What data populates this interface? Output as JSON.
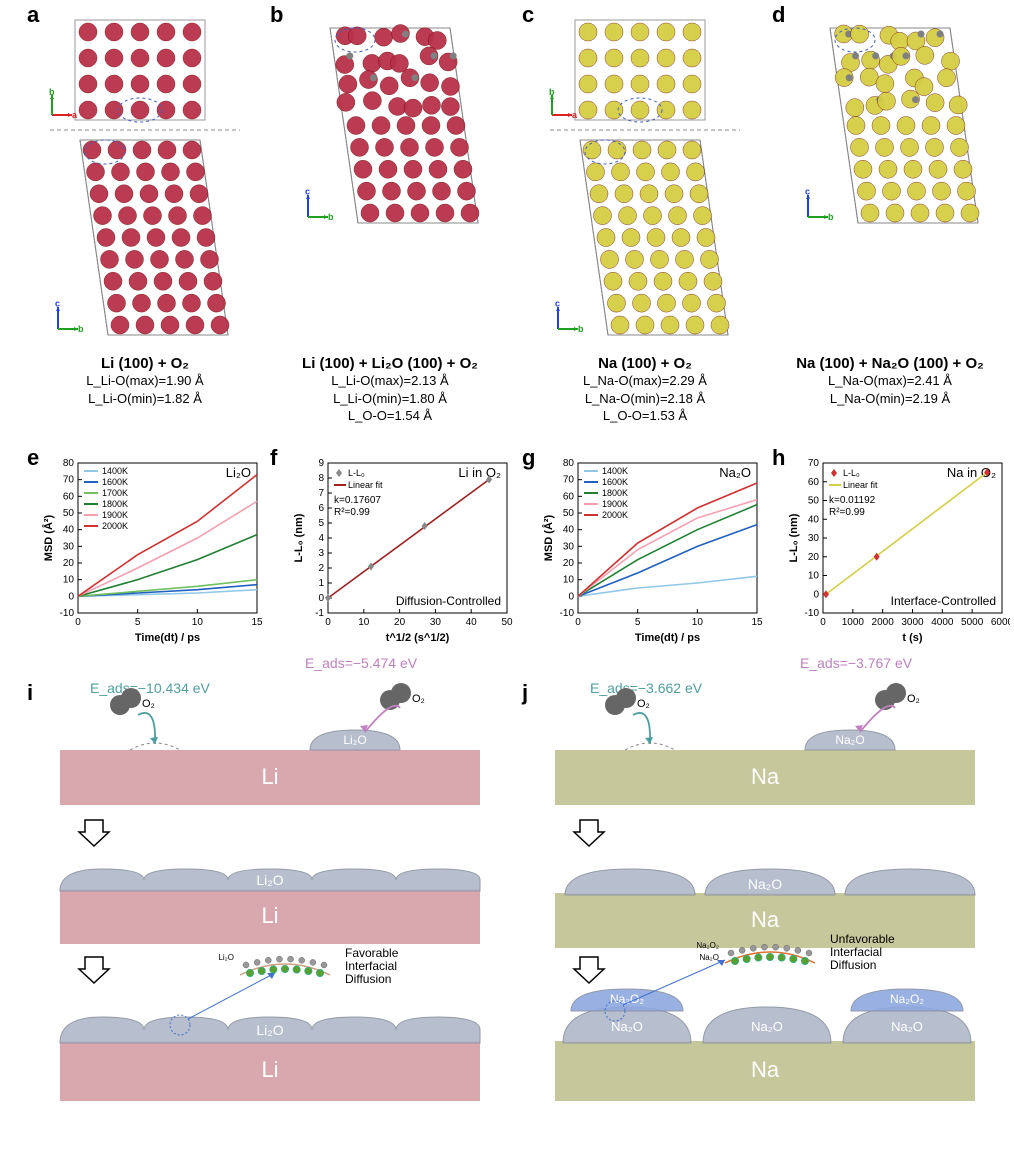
{
  "colors": {
    "li_atom": "#b8314a",
    "na_atom": "#d4ce44",
    "o_atom": "#808080",
    "slab_li": "#d9a8ae",
    "slab_na": "#c6c79a",
    "oxide": "#b0b8c8",
    "na2o2": "#8fa8e0",
    "axis_a": "#e02020",
    "axis_b": "#20a020",
    "axis_c": "#2040e0",
    "teal": "#4f9ea0",
    "pink": "#c080c0",
    "arc_li": "#d0a080",
    "arc_na": "#e07030",
    "diff_green": "#5aa02a"
  },
  "temps_palette": {
    "1400K": "#90c8e8",
    "1600K": "#2060c0",
    "1700K": "#70c060",
    "1800K": "#208030",
    "1900K": "#f4a0b0",
    "2000K": "#d03030"
  },
  "panels": {
    "a": {
      "title": "Li (100) + O₂",
      "sub1": "L_Li-O(max)=1.90 Å",
      "sub2": "L_Li-O(min)=1.82 Å"
    },
    "b": {
      "title": "Li (100) + Li₂O (100) + O₂",
      "sub1": "L_Li-O(max)=2.13 Å",
      "sub2": "L_Li-O(min)=1.80 Å",
      "sub3": "L_O-O=1.54 Å"
    },
    "c": {
      "title": "Na (100) + O₂",
      "sub1": "L_Na-O(max)=2.29 Å",
      "sub2": "L_Na-O(min)=2.18 Å",
      "sub3": "L_O-O=1.53 Å"
    },
    "d": {
      "title": "Na (100) + Na₂O (100) + O₂",
      "sub1": "L_Na-O(max)=2.41 Å",
      "sub2": "L_Na-O(min)=2.19 Å"
    }
  },
  "chart_e": {
    "type": "line",
    "title": "Li₂O",
    "xlabel": "Time(dt) / ps",
    "ylabel": "MSD (Å²)",
    "xlim": [
      0,
      15
    ],
    "xtick_step": 5,
    "ylim": [
      -10,
      80
    ],
    "ytick_step": 10,
    "temps": [
      "1400K",
      "1600K",
      "1700K",
      "1800K",
      "1900K",
      "2000K"
    ],
    "series": {
      "1400K": [
        [
          0,
          0
        ],
        [
          5,
          1
        ],
        [
          10,
          2
        ],
        [
          15,
          4
        ]
      ],
      "1600K": [
        [
          0,
          0
        ],
        [
          5,
          2
        ],
        [
          10,
          4
        ],
        [
          15,
          7
        ]
      ],
      "1700K": [
        [
          0,
          0
        ],
        [
          5,
          3
        ],
        [
          10,
          6
        ],
        [
          15,
          10
        ]
      ],
      "1800K": [
        [
          0,
          0
        ],
        [
          5,
          10
        ],
        [
          10,
          22
        ],
        [
          15,
          37
        ]
      ],
      "1900K": [
        [
          0,
          0
        ],
        [
          5,
          17
        ],
        [
          10,
          35
        ],
        [
          15,
          57
        ]
      ],
      "2000K": [
        [
          0,
          0
        ],
        [
          5,
          25
        ],
        [
          10,
          45
        ],
        [
          15,
          73
        ]
      ]
    }
  },
  "chart_f": {
    "type": "scatter+line",
    "title": "Li in O₂",
    "xlabel": "t^1/2 (s^1/2)",
    "ylabel": "L-L₀ (nm)",
    "xlim": [
      0,
      50
    ],
    "xtick_step": 10,
    "ylim": [
      -1,
      9
    ],
    "ytick_step": 1,
    "legend": [
      "L-L₀",
      "Linear fit"
    ],
    "k": "k=0.17607",
    "r2": "R²=0.99",
    "note": "Diffusion-Controlled",
    "points": [
      [
        0,
        0
      ],
      [
        12,
        2.1
      ],
      [
        27,
        4.8
      ],
      [
        45,
        7.9
      ]
    ],
    "fit_color": "#a02020",
    "marker_color": "#888"
  },
  "chart_g": {
    "type": "line",
    "title": "Na₂O",
    "xlabel": "Time(dt) / ps",
    "ylabel": "MSD (Å²)",
    "xlim": [
      0,
      15
    ],
    "xtick_step": 5,
    "ylim": [
      -10,
      80
    ],
    "ytick_step": 10,
    "temps": [
      "1400K",
      "1600K",
      "1800K",
      "1900K",
      "2000K"
    ],
    "series": {
      "1400K": [
        [
          0,
          0
        ],
        [
          5,
          5
        ],
        [
          10,
          8
        ],
        [
          15,
          12
        ]
      ],
      "1600K": [
        [
          0,
          0
        ],
        [
          5,
          14
        ],
        [
          10,
          30
        ],
        [
          15,
          43
        ]
      ],
      "1800K": [
        [
          0,
          0
        ],
        [
          5,
          22
        ],
        [
          10,
          40
        ],
        [
          15,
          55
        ]
      ],
      "1900K": [
        [
          0,
          0
        ],
        [
          5,
          28
        ],
        [
          10,
          47
        ],
        [
          15,
          58
        ]
      ],
      "2000K": [
        [
          0,
          0
        ],
        [
          5,
          32
        ],
        [
          10,
          53
        ],
        [
          15,
          68
        ]
      ]
    }
  },
  "chart_h": {
    "type": "scatter+line",
    "title": "Na in O₂",
    "xlabel": "t (s)",
    "ylabel": "L-L₀ (nm)",
    "xlim": [
      0,
      6000
    ],
    "xtick_step": 1000,
    "ylim": [
      -10,
      70
    ],
    "ytick_step": 10,
    "legend": [
      "L-L₀",
      "Linear fit"
    ],
    "k": "k=0.01192",
    "r2": "R²=0.99",
    "note": "Interface-Controlled",
    "points": [
      [
        100,
        0
      ],
      [
        1800,
        20
      ],
      [
        5500,
        65
      ]
    ],
    "fit_color": "#d4ce44",
    "marker_color": "#d03030"
  },
  "scheme_i": {
    "eads_bare": "E_ads=−10.434 eV",
    "eads_oxide": "E_ads=−5.474 eV",
    "metal": "Li",
    "oxide": "Li₂O",
    "diff_note": "Favorable\nInterfacial\nDiffusion",
    "arc_small": "Li₂O"
  },
  "scheme_j": {
    "eads_bare": "E_ads=−3.662 eV",
    "eads_oxide": "E_ads=−3.767 eV",
    "metal": "Na",
    "oxide": "Na₂O",
    "peroxide": "Na₂O₂",
    "diff_note": "Unfavorable\nInterfacial\nDiffusion",
    "arc_top": "Na₂O₂",
    "arc_bot": "Na₂O"
  }
}
